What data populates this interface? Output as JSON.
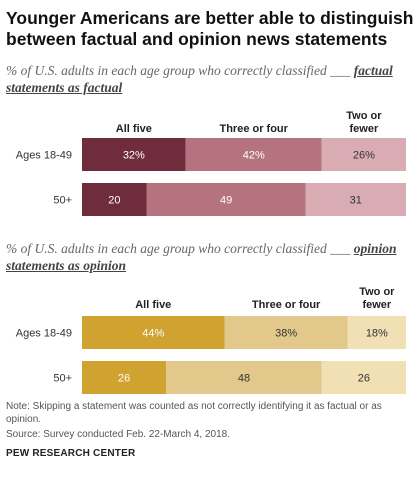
{
  "title": "Younger Americans are better able to distinguish between factual and opinion news statements",
  "chart_data": [
    {
      "type": "bar",
      "orientation": "horizontal-stacked",
      "subtitle_lead": "% of U.S. adults in each age group who correctly classified ___",
      "subtitle_emphasis": "factual statements as factual",
      "categories": [
        "Ages 18-49",
        "50+"
      ],
      "series": [
        {
          "name": "All five",
          "values": [
            32,
            20
          ],
          "color": "#6e2c3c"
        },
        {
          "name": "Three or four",
          "values": [
            42,
            49
          ],
          "color": "#b5737f"
        },
        {
          "name": "Two or fewer",
          "values": [
            26,
            31
          ],
          "color": "#d9abb3"
        }
      ],
      "data_labels": [
        [
          "32%",
          "42%",
          "26%"
        ],
        [
          "20",
          "49",
          "31"
        ]
      ],
      "xlim": [
        0,
        100
      ]
    },
    {
      "type": "bar",
      "orientation": "horizontal-stacked",
      "subtitle_lead": "% of U.S. adults in each age group who correctly classified ___",
      "subtitle_emphasis": "opinion statements as opinion",
      "categories": [
        "Ages 18-49",
        "50+"
      ],
      "series": [
        {
          "name": "All five",
          "values": [
            44,
            26
          ],
          "color": "#d0a22f"
        },
        {
          "name": "Three or four",
          "values": [
            38,
            48
          ],
          "color": "#e2c98b"
        },
        {
          "name": "Two or fewer",
          "values": [
            18,
            26
          ],
          "color": "#f0e0b4"
        }
      ],
      "data_labels": [
        [
          "44%",
          "38%",
          "18%"
        ],
        [
          "26",
          "48",
          "26"
        ]
      ],
      "xlim": [
        0,
        100
      ]
    }
  ],
  "note": "Note: Skipping a statement was counted as not correctly identifying it as factual or as opinion.",
  "source": "Source: Survey conducted Feb. 22-March 4, 2018.",
  "brand": "PEW RESEARCH CENTER"
}
